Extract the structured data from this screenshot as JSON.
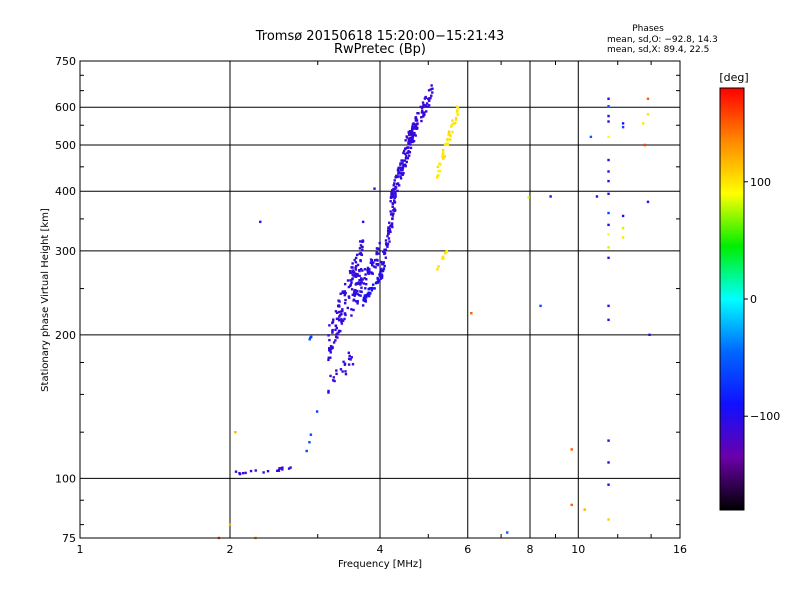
{
  "chart_data": {
    "type": "scatter",
    "title": "Tromsø 20150618 15:20:00−15:21:43",
    "subtitle": "RwPretec (Bp)",
    "xlabel": "Frequency [MHz]",
    "ylabel": "Stationary phase Virtual Height [km]",
    "x_scale": "log",
    "y_scale": "log",
    "xlim": [
      1,
      16
    ],
    "ylim": [
      75,
      750
    ],
    "x_ticks": [
      1,
      2,
      4,
      6,
      8,
      10,
      16
    ],
    "x_tick_labels": [
      "1",
      "2",
      "4",
      "6",
      "8",
      "10",
      "16"
    ],
    "y_ticks": [
      75,
      100,
      200,
      300,
      400,
      500,
      600,
      750
    ],
    "y_tick_labels": [
      "75",
      "100",
      "200",
      "300",
      "400",
      "500",
      "600",
      "750"
    ],
    "grid": true,
    "info_block": {
      "heading": "Phases",
      "line1": "mean, sd,O: −92.8, 14.3",
      "line2": "mean, sd,X:  89.4, 22.5"
    },
    "colorbar": {
      "label": "[deg]",
      "range": [
        -180,
        180
      ],
      "ticks": [
        100,
        0,
        -100
      ],
      "tick_labels": [
        "100",
        "0",
        "−100"
      ],
      "colors": [
        "#ff0000",
        "#ff8800",
        "#ffff00",
        "#00ee00",
        "#00ffff",
        "#0066ff",
        "#1010ff",
        "#6a00aa",
        "#000000"
      ]
    },
    "segments": [
      {
        "x0": 1.95,
        "x1": 2.65,
        "y0": 102,
        "y1": 105,
        "n": 18,
        "phase": -110,
        "jy": 0.01
      },
      {
        "x0": 2.85,
        "x1": 3.0,
        "y0": 115,
        "y1": 140,
        "n": 4,
        "phase": -60,
        "jy": 0.02
      },
      {
        "x0": 2.85,
        "x1": 2.95,
        "y0": 196,
        "y1": 198,
        "n": 3,
        "phase": -60,
        "jy": 0.01
      },
      {
        "x0": 3.15,
        "x1": 3.55,
        "y0": 155,
        "y1": 180,
        "n": 22,
        "phase": -110,
        "jy": 0.05
      },
      {
        "x0": 3.15,
        "x1": 3.7,
        "y0": 190,
        "y1": 300,
        "n": 140,
        "phase": -108,
        "jy": 0.09
      },
      {
        "x0": 3.5,
        "x1": 4.0,
        "y0": 230,
        "y1": 300,
        "n": 70,
        "phase": -105,
        "jy": 0.05
      },
      {
        "x0": 3.7,
        "x1": 4.1,
        "y0": 235,
        "y1": 275,
        "n": 45,
        "phase": -95,
        "jy": 0.02
      },
      {
        "x0": 4.0,
        "x1": 4.3,
        "y0": 265,
        "y1": 380,
        "n": 60,
        "phase": -108,
        "jy": 0.05
      },
      {
        "x0": 4.2,
        "x1": 4.75,
        "y0": 380,
        "y1": 560,
        "n": 130,
        "phase": -108,
        "jy": 0.05
      },
      {
        "x0": 4.5,
        "x1": 5.1,
        "y0": 500,
        "y1": 650,
        "n": 70,
        "phase": -110,
        "jy": 0.04
      },
      {
        "x0": 5.2,
        "x1": 5.75,
        "y0": 430,
        "y1": 600,
        "n": 45,
        "phase": 100,
        "jy": 0.03
      },
      {
        "x0": 5.2,
        "x1": 5.5,
        "y0": 275,
        "y1": 305,
        "n": 8,
        "phase": 100,
        "jy": 0.01
      }
    ],
    "scatter_points": [
      {
        "x": 2.3,
        "y": 345,
        "phase": -110
      },
      {
        "x": 3.7,
        "y": 345,
        "phase": -105
      },
      {
        "x": 3.9,
        "y": 405,
        "phase": -105
      },
      {
        "x": 1.9,
        "y": 75,
        "phase": 150
      },
      {
        "x": 2.0,
        "y": 80,
        "phase": 120
      },
      {
        "x": 2.05,
        "y": 125,
        "phase": 120
      },
      {
        "x": 2.25,
        "y": 75,
        "phase": 130
      },
      {
        "x": 6.1,
        "y": 222,
        "phase": 150
      },
      {
        "x": 7.2,
        "y": 77,
        "phase": -50
      },
      {
        "x": 7.95,
        "y": 388,
        "phase": 80
      },
      {
        "x": 8.4,
        "y": 230,
        "phase": -60
      },
      {
        "x": 8.8,
        "y": 390,
        "phase": -100
      },
      {
        "x": 9.7,
        "y": 115,
        "phase": 150
      },
      {
        "x": 9.7,
        "y": 88,
        "phase": 150
      },
      {
        "x": 10.3,
        "y": 86,
        "phase": 120
      },
      {
        "x": 10.6,
        "y": 520,
        "phase": -50
      },
      {
        "x": 10.9,
        "y": 390,
        "phase": -100
      },
      {
        "x": 11.5,
        "y": 625,
        "phase": -100
      },
      {
        "x": 11.5,
        "y": 603,
        "phase": -50
      },
      {
        "x": 11.5,
        "y": 575,
        "phase": -100
      },
      {
        "x": 11.5,
        "y": 560,
        "phase": -105
      },
      {
        "x": 11.5,
        "y": 520,
        "phase": 90
      },
      {
        "x": 11.5,
        "y": 465,
        "phase": -105
      },
      {
        "x": 11.5,
        "y": 440,
        "phase": -105
      },
      {
        "x": 11.5,
        "y": 420,
        "phase": -105
      },
      {
        "x": 11.5,
        "y": 395,
        "phase": -100
      },
      {
        "x": 11.5,
        "y": 360,
        "phase": -60
      },
      {
        "x": 11.5,
        "y": 340,
        "phase": -100
      },
      {
        "x": 11.5,
        "y": 325,
        "phase": 90
      },
      {
        "x": 11.5,
        "y": 305,
        "phase": 80
      },
      {
        "x": 11.5,
        "y": 290,
        "phase": -100
      },
      {
        "x": 11.5,
        "y": 230,
        "phase": -105
      },
      {
        "x": 11.5,
        "y": 215,
        "phase": -110
      },
      {
        "x": 11.5,
        "y": 120,
        "phase": -110
      },
      {
        "x": 11.5,
        "y": 108,
        "phase": -100
      },
      {
        "x": 11.5,
        "y": 97,
        "phase": -105
      },
      {
        "x": 11.5,
        "y": 82,
        "phase": 110
      },
      {
        "x": 12.3,
        "y": 555,
        "phase": -100
      },
      {
        "x": 12.3,
        "y": 545,
        "phase": -60
      },
      {
        "x": 12.3,
        "y": 355,
        "phase": -100
      },
      {
        "x": 12.3,
        "y": 335,
        "phase": 80
      },
      {
        "x": 12.3,
        "y": 320,
        "phase": 100
      },
      {
        "x": 13.8,
        "y": 625,
        "phase": 150
      },
      {
        "x": 13.8,
        "y": 580,
        "phase": 100
      },
      {
        "x": 13.5,
        "y": 555,
        "phase": 100
      },
      {
        "x": 13.6,
        "y": 500,
        "phase": 160
      },
      {
        "x": 13.8,
        "y": 380,
        "phase": -110
      },
      {
        "x": 13.9,
        "y": 200,
        "phase": -110
      }
    ]
  }
}
